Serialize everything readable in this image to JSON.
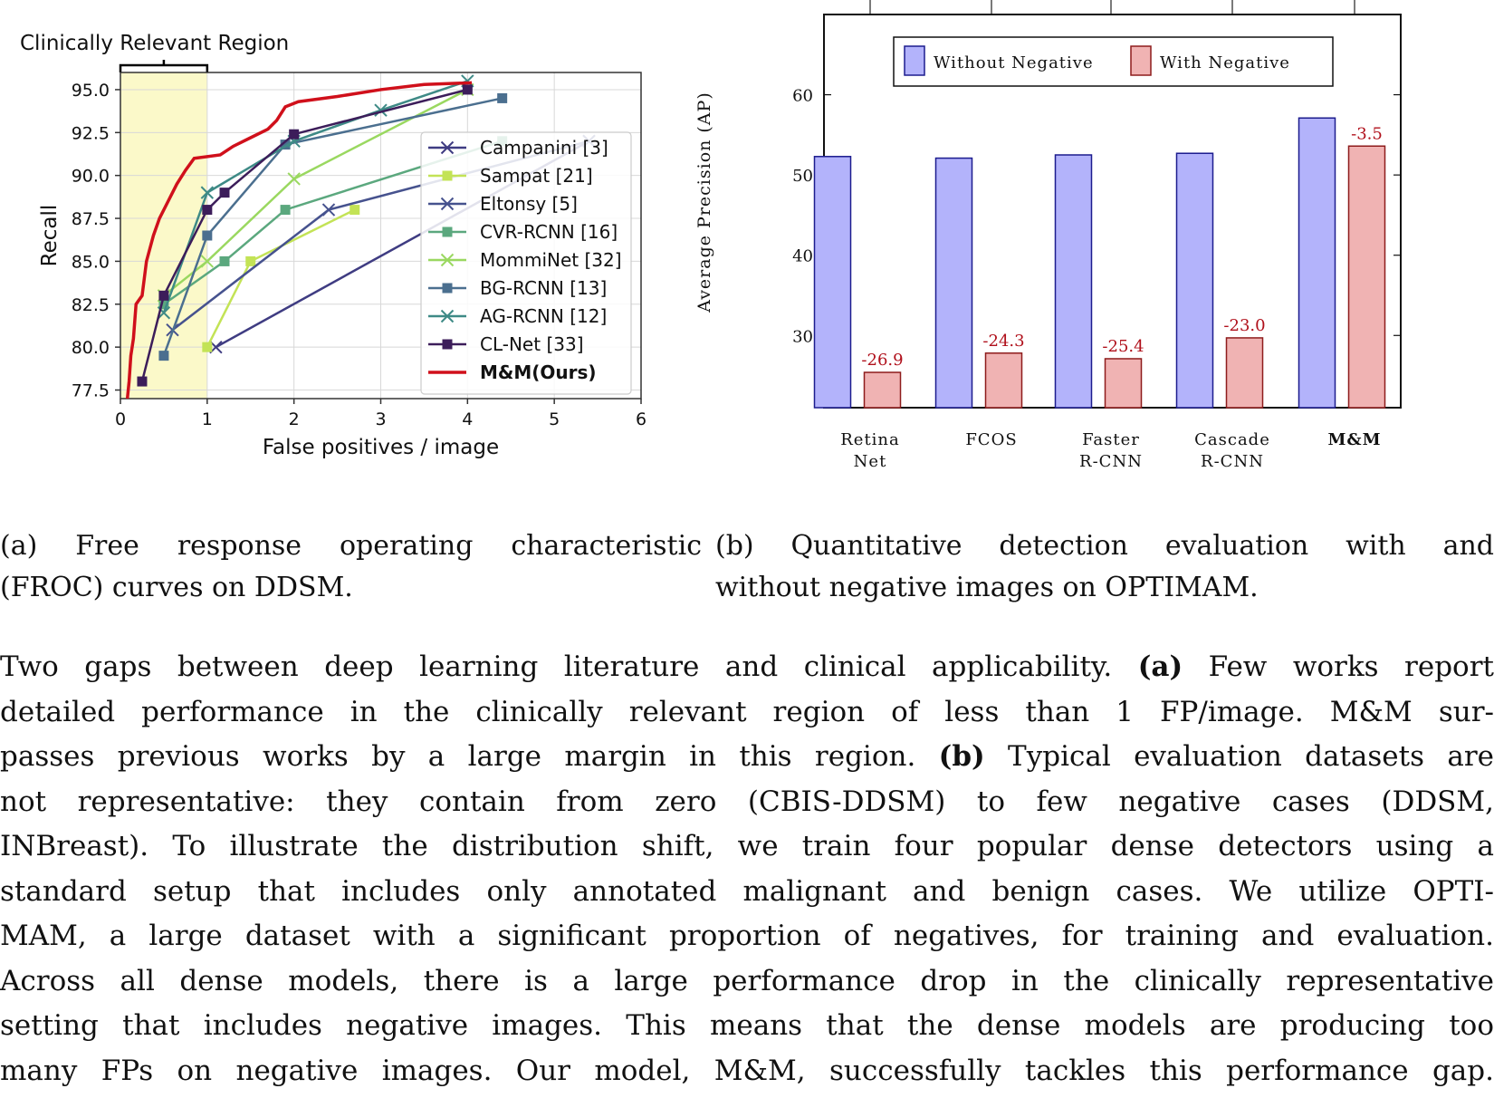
{
  "chart_data": [
    {
      "id": "froc",
      "type": "line",
      "xlabel": "False positives / image",
      "ylabel": "Recall",
      "xlim": [
        0,
        6
      ],
      "ylim": [
        77,
        96
      ],
      "xticks": [
        "0",
        "1",
        "2",
        "3",
        "4",
        "5",
        "6"
      ],
      "yticks": [
        "77.5",
        "80.0",
        "82.5",
        "85.0",
        "87.5",
        "90.0",
        "92.5",
        "95.0"
      ],
      "region_label": "Clinically Relevant Region",
      "region_x": [
        0,
        1
      ],
      "region_color": "#fbf9c9",
      "grid": true,
      "legend_position": "center-right",
      "series": [
        {
          "name": "Campanini  [3]",
          "color": "#3f3c82",
          "marker": "x",
          "points": [
            [
              1.1,
              80.0
            ],
            [
              5.4,
              92.0
            ]
          ]
        },
        {
          "name": "Sampat [21]",
          "color": "#c3e356",
          "marker": "s",
          "points": [
            [
              1.0,
              80.0
            ],
            [
              1.5,
              85.0
            ],
            [
              2.7,
              88.0
            ]
          ]
        },
        {
          "name": "Eltonsy [5]",
          "color": "#46528e",
          "marker": "x",
          "points": [
            [
              0.6,
              81.0
            ],
            [
              2.4,
              88.0
            ],
            [
              5.4,
              92.0
            ]
          ]
        },
        {
          "name": "CVR-RCNN [16]",
          "color": "#5ba87e",
          "marker": "s",
          "points": [
            [
              0.5,
              82.5
            ],
            [
              1.2,
              85.0
            ],
            [
              1.9,
              88.0
            ],
            [
              4.4,
              92.0
            ]
          ]
        },
        {
          "name": "MommiNet [32]",
          "color": "#9ad860",
          "marker": "x",
          "points": [
            [
              0.5,
              83.0
            ],
            [
              1.0,
              85.0
            ],
            [
              2.0,
              89.8
            ],
            [
              4.0,
              95.0
            ]
          ]
        },
        {
          "name": "BG-RCNN [13]",
          "color": "#4b6f8f",
          "marker": "s",
          "points": [
            [
              0.5,
              79.5
            ],
            [
              1.0,
              86.5
            ],
            [
              1.9,
              91.8
            ],
            [
              4.4,
              94.5
            ]
          ]
        },
        {
          "name": "AG-RCNN [12]",
          "color": "#3e8a86",
          "marker": "x",
          "points": [
            [
              0.5,
              82.0
            ],
            [
              1.0,
              89.0
            ],
            [
              2.0,
              92.0
            ],
            [
              3.0,
              93.8
            ],
            [
              4.0,
              95.5
            ]
          ]
        },
        {
          "name": "CL-Net [33]",
          "color": "#3c1d5a",
          "marker": "s",
          "points": [
            [
              0.25,
              78.0
            ],
            [
              0.5,
              83.0
            ],
            [
              1.0,
              88.0
            ],
            [
              1.2,
              89.0
            ],
            [
              2.0,
              92.4
            ],
            [
              4.0,
              95.0
            ]
          ]
        },
        {
          "name": "M&M(Ours)",
          "color": "#d0101b",
          "marker": "none",
          "bold": true,
          "points": [
            [
              0.08,
              77.0
            ],
            [
              0.1,
              78.0
            ],
            [
              0.12,
              79.5
            ],
            [
              0.15,
              80.5
            ],
            [
              0.18,
              82.5
            ],
            [
              0.25,
              83.0
            ],
            [
              0.3,
              85.0
            ],
            [
              0.38,
              86.5
            ],
            [
              0.45,
              87.5
            ],
            [
              0.55,
              88.5
            ],
            [
              0.65,
              89.5
            ],
            [
              0.75,
              90.3
            ],
            [
              0.85,
              91.0
            ],
            [
              1.15,
              91.2
            ],
            [
              1.3,
              91.7
            ],
            [
              1.5,
              92.2
            ],
            [
              1.7,
              92.7
            ],
            [
              1.8,
              93.2
            ],
            [
              1.9,
              94.0
            ],
            [
              2.05,
              94.3
            ],
            [
              2.5,
              94.6
            ],
            [
              3.0,
              95.0
            ],
            [
              3.5,
              95.3
            ],
            [
              4.05,
              95.4
            ]
          ]
        }
      ]
    },
    {
      "id": "ap-bars",
      "type": "bar",
      "ylabel": "Average Precision (AP)",
      "ylim": [
        21,
        70
      ],
      "yticks": [
        "30",
        "40",
        "50",
        "60"
      ],
      "categories": [
        [
          "Retina",
          "Net"
        ],
        [
          "FCOS"
        ],
        [
          "Faster",
          "R-CNN"
        ],
        [
          "Cascade",
          "R-CNN"
        ],
        [
          "M&M"
        ]
      ],
      "legend_position": "top-center",
      "series": [
        {
          "name": "Without Negative",
          "color": "#b3b3fb",
          "stroke": "#1c1c8e",
          "values": [
            52.3,
            52.1,
            52.5,
            52.7,
            57.1
          ]
        },
        {
          "name": "With Negative",
          "color": "#f0b3b3",
          "stroke": "#8e1c1c",
          "values": [
            25.4,
            27.8,
            27.1,
            29.7,
            53.6
          ]
        }
      ],
      "data_labels": [
        "-26.9",
        "-24.3",
        "-25.4",
        "-23.0",
        "-3.5"
      ],
      "data_label_color": "#b0101b"
    }
  ],
  "captions": {
    "a_line1": "(a)  Free  response  operating  characteristic",
    "a_line2": "(FROC) curves on DDSM.",
    "b_line1": "(b)  Quantitative  detection  evaluation  with  and",
    "b_line2": "without negative images on OPTIMAM."
  },
  "body": {
    "l1_pre": "Two gaps between deep learning literature and clinical applicability.",
    "l1_bold": "(a)",
    "l1_post": "Few works report",
    "l2": "detailed performance in the clinically relevant region of less than 1 FP/image. M&M sur-",
    "l3_pre": "passes previous works by a large margin in this region.",
    "l3_bold": "(b)",
    "l3_post": "Typical evaluation datasets are",
    "l4": "not representative: they contain from zero (CBIS-DDSM) to few negative cases (DDSM,",
    "l5": "INBreast). To illustrate the distribution shift, we train four popular dense detectors using a",
    "l6": "standard setup that includes only annotated malignant and benign cases. We utilize OPTI-",
    "l7": "MAM, a large dataset with a significant proportion of negatives, for training and evaluation.",
    "l8": "Across all dense models, there is a large performance drop in the clinically representative",
    "l9": "setting that includes negative images. This means that the dense models are producing too",
    "l10": "many FPs on negative images. Our model, M&M, successfully tackles this performance gap."
  }
}
